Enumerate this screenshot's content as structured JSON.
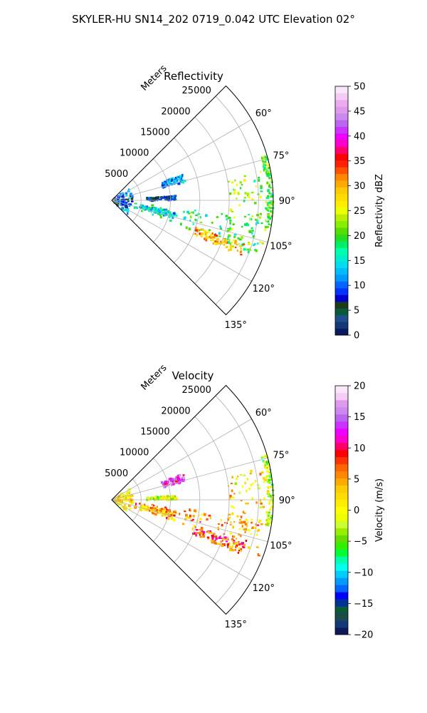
{
  "figure": {
    "title": "SKYLER-HU  SN14_202  0719_0.042 UTC Elevation 02°"
  },
  "chart_data": [
    {
      "type": "heatmap",
      "projection": "polar-sector",
      "title": "Reflectivity",
      "radial_label": "Meters",
      "radial_ticks": [
        5000,
        10000,
        15000,
        20000,
        25000
      ],
      "radial_tick_labels": [
        "5000",
        "10000",
        "15000",
        "20000",
        "25000"
      ],
      "radial_range": [
        0,
        27500
      ],
      "azimuth_range_deg": [
        45,
        135
      ],
      "azimuth_ticks_deg": [
        60,
        75,
        90,
        105,
        120,
        135
      ],
      "azimuth_tick_labels": [
        "60°",
        "75°",
        "90°",
        "105°",
        "120°",
        "135°"
      ],
      "grid": true,
      "colorbar": {
        "label": "Reflectivity dBZ",
        "range": [
          0,
          50
        ],
        "ticks": [
          0,
          5,
          10,
          15,
          20,
          25,
          30,
          35,
          40,
          45,
          50
        ],
        "tick_labels": [
          "0",
          "5",
          "10",
          "15",
          "20",
          "25",
          "30",
          "35",
          "40",
          "45",
          "50"
        ],
        "colors": [
          "#0a1a5a",
          "#123a7a",
          "#1e4e8c",
          "#0a5a3a",
          "#1a3a1a",
          "#0000cc",
          "#0033ff",
          "#0066ff",
          "#0099ff",
          "#00bbff",
          "#00ddee",
          "#00eecc",
          "#00ffaa",
          "#00ee66",
          "#22dd22",
          "#55dd00",
          "#88ee00",
          "#bbee00",
          "#eeff00",
          "#ffee00",
          "#ffdd00",
          "#ffcc00",
          "#ffaa00",
          "#ff8800",
          "#ff5500",
          "#ff2200",
          "#ff0000",
          "#ff0066",
          "#ff00cc",
          "#ee00ff",
          "#cc33ff",
          "#bb66ee",
          "#cc88ee",
          "#dd99ee",
          "#eeaaee",
          "#f4ccf4",
          "#fae6fa"
        ]
      },
      "echo_features": [
        {
          "r": [
            400,
            3600
          ],
          "az": [
            55,
            130
          ],
          "value": 10
        },
        {
          "r": [
            4000,
            26000
          ],
          "az": [
            97,
            110
          ],
          "value": 18
        },
        {
          "r": [
            15000,
            24000
          ],
          "az": [
            108,
            113
          ],
          "value": 30
        },
        {
          "r": [
            26500,
            27500
          ],
          "az": [
            74,
            100
          ],
          "value": 20
        },
        {
          "r": [
            20000,
            27000
          ],
          "az": [
            78,
            112
          ],
          "value": 22
        },
        {
          "r": [
            9000,
            13000
          ],
          "az": [
            70,
            76
          ],
          "value": 12
        },
        {
          "r": [
            6000,
            11000
          ],
          "az": [
            86,
            90
          ],
          "value": 6
        },
        {
          "r": [
            5000,
            11000
          ],
          "az": [
            100,
            106
          ],
          "value": 14
        }
      ]
    },
    {
      "type": "heatmap",
      "projection": "polar-sector",
      "title": "Velocity",
      "radial_label": "Meters",
      "radial_ticks": [
        5000,
        10000,
        15000,
        20000,
        25000
      ],
      "radial_tick_labels": [
        "5000",
        "10000",
        "15000",
        "20000",
        "25000"
      ],
      "radial_range": [
        0,
        27500
      ],
      "azimuth_range_deg": [
        45,
        135
      ],
      "azimuth_ticks_deg": [
        60,
        75,
        90,
        105,
        120,
        135
      ],
      "azimuth_tick_labels": [
        "60°",
        "75°",
        "90°",
        "105°",
        "120°",
        "135°"
      ],
      "grid": true,
      "colorbar": {
        "label": "Velocity (m/s)",
        "range": [
          -20,
          20
        ],
        "ticks": [
          -20,
          -15,
          -10,
          -5,
          0,
          5,
          10,
          15,
          20
        ],
        "tick_labels": [
          "−20",
          "−15",
          "−10",
          "−5",
          "0",
          "5",
          "10",
          "15",
          "20"
        ],
        "colors": [
          "#0a1a5a",
          "#123a7a",
          "#1a4a4a",
          "#0a5a3a",
          "#003399",
          "#0000ff",
          "#0066ff",
          "#0099ff",
          "#00ccff",
          "#00ffee",
          "#00ffaa",
          "#00ff33",
          "#33ee00",
          "#66dd00",
          "#99ee00",
          "#ccff33",
          "#eeff00",
          "#ffff00",
          "#ffee00",
          "#ffdd00",
          "#ffcc00",
          "#ffaa00",
          "#ff8800",
          "#ff6600",
          "#ff3300",
          "#ff0000",
          "#ff0066",
          "#ff00cc",
          "#ee00ff",
          "#cc33ff",
          "#bb66ee",
          "#cc88ee",
          "#dd99ee",
          "#f4ccf4",
          "#fae6fa"
        ]
      },
      "echo_features": [
        {
          "r": [
            400,
            3600
          ],
          "az": [
            55,
            130
          ],
          "value": 2
        },
        {
          "r": [
            4000,
            26000
          ],
          "az": [
            97,
            110
          ],
          "value": 5
        },
        {
          "r": [
            15000,
            24000
          ],
          "az": [
            108,
            113
          ],
          "value": 8
        },
        {
          "r": [
            26500,
            27500
          ],
          "az": [
            74,
            100
          ],
          "value": -3
        },
        {
          "r": [
            20000,
            27000
          ],
          "az": [
            78,
            112
          ],
          "value": 2
        },
        {
          "r": [
            9000,
            13000
          ],
          "az": [
            70,
            76
          ],
          "value": 14
        },
        {
          "r": [
            6000,
            11000
          ],
          "az": [
            86,
            90
          ],
          "value": -2
        },
        {
          "r": [
            5000,
            11000
          ],
          "az": [
            100,
            106
          ],
          "value": 4
        }
      ]
    }
  ]
}
